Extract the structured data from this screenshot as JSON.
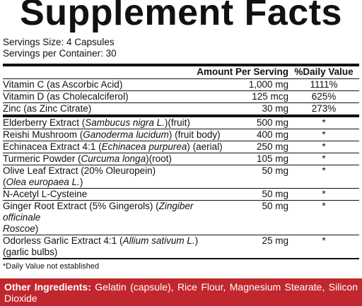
{
  "title": "Supplement Facts",
  "serving_size": "Servings Size: 4 Capsules",
  "servings_per_container": "Servings per Container: 30",
  "header": {
    "amount": "Amount Per Serving",
    "daily_value": "%Daily Value"
  },
  "sections": [
    {
      "rows": [
        {
          "name": [
            [
              {
                "text": "Vitamin C (as Ascorbic Acid)"
              }
            ]
          ],
          "amount": "1,000 mg",
          "daily_value": "1111%"
        },
        {
          "name": [
            [
              {
                "text": "Vitamin D (as Cholecalciferol)"
              }
            ]
          ],
          "amount": "125 mcg",
          "daily_value": "625%"
        },
        {
          "name": [
            [
              {
                "text": "Zinc (as Zinc Citrate)"
              }
            ]
          ],
          "amount": "30 mg",
          "daily_value": "273%"
        }
      ]
    },
    {
      "rows": [
        {
          "name": [
            [
              {
                "text": "Elderberry Extract ("
              },
              {
                "text": "Sambucus nigra L.",
                "italic": true
              },
              {
                "text": ")(fruit)"
              }
            ]
          ],
          "amount": "500 mg",
          "daily_value": "*"
        },
        {
          "name": [
            [
              {
                "text": "Reishi Mushroom ("
              },
              {
                "text": "Ganoderma lucidum",
                "italic": true
              },
              {
                "text": ") (fruit body)"
              }
            ]
          ],
          "amount": "400 mg",
          "daily_value": "*"
        },
        {
          "name": [
            [
              {
                "text": "Echinacea Extract 4:1 ("
              },
              {
                "text": "Echinacea purpurea",
                "italic": true
              },
              {
                "text": ") (aerial)"
              }
            ]
          ],
          "amount": "250 mg",
          "daily_value": "*"
        },
        {
          "name": [
            [
              {
                "text": "Turmeric Powder ("
              },
              {
                "text": "Curcuma longa",
                "italic": true
              },
              {
                "text": ")(root)"
              }
            ]
          ],
          "amount": "105 mg",
          "daily_value": "*"
        },
        {
          "name": [
            [
              {
                "text": "Olive Leaf Extract (20% Oleuropein)"
              }
            ],
            [
              {
                "text": "("
              },
              {
                "text": "Olea europaea L.",
                "italic": true
              },
              {
                "text": ")"
              }
            ]
          ],
          "amount": "50 mg",
          "daily_value": "*"
        },
        {
          "name": [
            [
              {
                "text": "N-Acetyl L-Cysteine"
              }
            ]
          ],
          "amount": "50 mg",
          "daily_value": "*"
        },
        {
          "name": [
            [
              {
                "text": "Ginger Root Extract (5% Gingerols) ("
              },
              {
                "text": "Zingiber officinale",
                "italic": true
              }
            ],
            [
              {
                "text": "Roscoe",
                "italic": true
              },
              {
                "text": ")"
              }
            ]
          ],
          "amount": "50 mg",
          "daily_value": "*"
        },
        {
          "name": [
            [
              {
                "text": "Odorless Garlic Extract 4:1 ("
              },
              {
                "text": "Allium sativum L.",
                "italic": true
              },
              {
                "text": ")"
              }
            ],
            [
              {
                "text": "(garlic bulbs)"
              }
            ]
          ],
          "amount": "25 mg",
          "daily_value": "*"
        }
      ]
    }
  ],
  "footnote": "*Daily Value not established",
  "other_ingredients": {
    "label": "Other Ingredients:",
    "text": "Gelatin (capsule), Rice Flour, Magnesium Stearate, Silicon Dioxide"
  }
}
